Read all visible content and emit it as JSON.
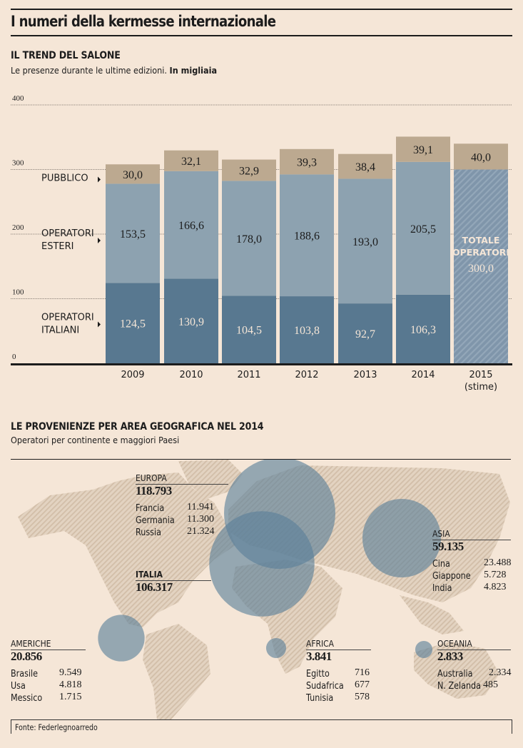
{
  "header": {
    "title": "I numeri della kermesse internazionale"
  },
  "trend": {
    "title": "IL TREND DEL SALONE",
    "subtitle": "Le presenze durante le ultime edizioni.",
    "subtitle_bold": "In migliaia"
  },
  "geo": {
    "title": "LE PROVENIENZE PER AREA GEOGRAFICA NEL 2014",
    "subtitle": "Operatori per continente e maggiori Paesi",
    "areas": [
      {
        "key": "europa",
        "name": "EUROPA",
        "total": "118.793",
        "value": 118793,
        "countries": [
          {
            "name": "Francia",
            "value": "11.941"
          },
          {
            "name": "Germania",
            "value": "11.300"
          },
          {
            "name": "Russia",
            "value": "21.324"
          }
        ]
      },
      {
        "key": "italia",
        "name": "ITALIA",
        "total": "106.317",
        "value": 106317,
        "countries": []
      },
      {
        "key": "asia",
        "name": "ASIA",
        "total": "59.135",
        "value": 59135,
        "countries": [
          {
            "name": "Cina",
            "value": "23.488"
          },
          {
            "name": "Giappone",
            "value": "5.728"
          },
          {
            "name": "India",
            "value": "4.823"
          }
        ]
      },
      {
        "key": "americhe",
        "name": "AMERICHE",
        "total": "20.856",
        "value": 20856,
        "countries": [
          {
            "name": "Brasile",
            "value": "9.549"
          },
          {
            "name": "Usa",
            "value": "4.818"
          },
          {
            "name": "Messico",
            "value": "1.715"
          }
        ]
      },
      {
        "key": "africa",
        "name": "AFRICA",
        "total": "3.841",
        "value": 3841,
        "countries": [
          {
            "name": "Egitto",
            "value": "716"
          },
          {
            "name": "Sudafrica",
            "value": "677"
          },
          {
            "name": "Tunisia",
            "value": "578"
          }
        ]
      },
      {
        "key": "oceania",
        "name": "OCEANIA",
        "total": "2.833",
        "value": 2833,
        "countries": [
          {
            "name": "Australia",
            "value": "2.334"
          },
          {
            "name": "N. Zelanda",
            "value": "485"
          }
        ]
      }
    ]
  },
  "source": "Fonte: Federlegnoarredo",
  "colors": {
    "background": "#f5e6d7",
    "pubblico": "#bca990",
    "esteri": "#8da2b0",
    "italiani": "#587890",
    "estimate": "#7f95aa",
    "bubble": "#5a7f99",
    "land": "#dccbb6"
  },
  "chart_data": [
    {
      "type": "bar",
      "stacked": true,
      "title": "IL TREND DEL SALONE",
      "subtitle": "Le presenze durante le ultime edizioni. In migliaia",
      "categories": [
        "2009",
        "2010",
        "2011",
        "2012",
        "2013",
        "2014",
        "2015"
      ],
      "category_notes": {
        "2015": "(stime)"
      },
      "series": [
        {
          "name": "OPERATORI ITALIANI",
          "values": [
            124.5,
            130.9,
            104.5,
            103.8,
            92.7,
            106.3,
            null
          ],
          "labels": [
            "124,5",
            "130,9",
            "104,5",
            "103,8",
            "92,7",
            "106,3",
            ""
          ]
        },
        {
          "name": "OPERATORI ESTERI",
          "values": [
            153.5,
            166.6,
            178.0,
            188.6,
            193.0,
            205.5,
            null
          ],
          "labels": [
            "153,5",
            "166,6",
            "178,0",
            "188,6",
            "193,0",
            "205,5",
            ""
          ]
        },
        {
          "name": "PUBBLICO",
          "values": [
            30.0,
            32.1,
            32.9,
            39.3,
            38.4,
            39.1,
            40.0
          ],
          "labels": [
            "30,0",
            "32,1",
            "32,9",
            "39,3",
            "38,4",
            "39,1",
            "40,0"
          ]
        }
      ],
      "estimate": {
        "category": "2015",
        "label_line1": "TOTALE",
        "label_line2": "OPERATORI",
        "value": 300.0,
        "value_label": "300,0"
      },
      "yticks": [
        0,
        100,
        200,
        300,
        400
      ],
      "ylim": [
        0,
        400
      ],
      "grid": true,
      "legend": "left",
      "xlabel": "",
      "ylabel": ""
    },
    {
      "type": "bubble-map",
      "title": "LE PROVENIENZE PER AREA GEOGRAFICA NEL 2014",
      "subtitle": "Operatori per continente e maggiori Paesi",
      "points": [
        {
          "name": "EUROPA",
          "value": 118793
        },
        {
          "name": "ITALIA",
          "value": 106317
        },
        {
          "name": "ASIA",
          "value": 59135
        },
        {
          "name": "AMERICHE",
          "value": 20856
        },
        {
          "name": "AFRICA",
          "value": 3841
        },
        {
          "name": "OCEANIA",
          "value": 2833
        }
      ]
    }
  ]
}
